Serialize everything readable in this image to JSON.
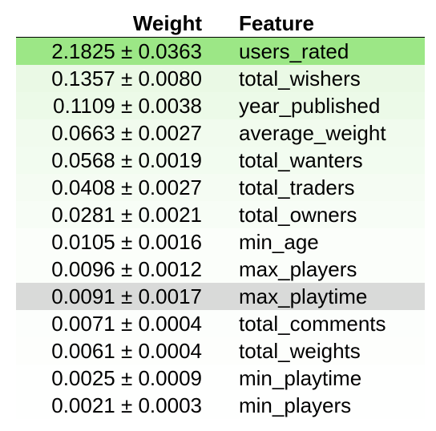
{
  "header": {
    "weight_label": "Weight",
    "feature_label": "Feature"
  },
  "rows": [
    {
      "weight": "2.1825 ± 0.0363",
      "feature": "users_rated",
      "bg": "#9ce786"
    },
    {
      "weight": "0.1357 ± 0.0080",
      "feature": "total_wishers",
      "bg": "#eaf9e5"
    },
    {
      "weight": "0.1109 ± 0.0038",
      "feature": "year_published",
      "bg": "#ecfae8"
    },
    {
      "weight": "0.0663 ± 0.0027",
      "feature": "average_weight",
      "bg": "#f1fbee"
    },
    {
      "weight": "0.0568 ± 0.0019",
      "feature": "total_wanters",
      "bg": "#f2fcf0"
    },
    {
      "weight": "0.0408 ± 0.0027",
      "feature": "total_traders",
      "bg": "#f5fcf3"
    },
    {
      "weight": "0.0281 ± 0.0021",
      "feature": "total_owners",
      "bg": "#f7fdf6"
    },
    {
      "weight": "0.0105 ± 0.0016",
      "feature": "min_age",
      "bg": "#fbfefa"
    },
    {
      "weight": "0.0096 ± 0.0012",
      "feature": "max_players",
      "bg": "#fbfefa"
    },
    {
      "weight": "0.0091 ± 0.0017",
      "feature": "max_playtime",
      "bg": "#d9dad9"
    },
    {
      "weight": "0.0071 ± 0.0004",
      "feature": "total_comments",
      "bg": "#fcfefc"
    },
    {
      "weight": "0.0061 ± 0.0004",
      "feature": "total_weights",
      "bg": "#fdfefc"
    },
    {
      "weight": "0.0025 ± 0.0009",
      "feature": "min_playtime",
      "bg": "#fefffe"
    },
    {
      "weight": "0.0021 ± 0.0003",
      "feature": "min_players",
      "bg": "#fefffe"
    }
  ]
}
